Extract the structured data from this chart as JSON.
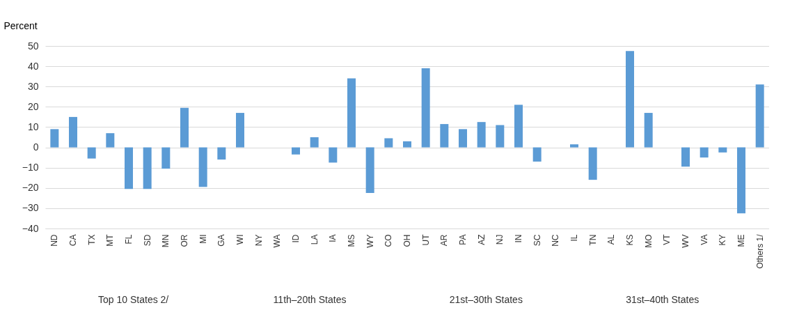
{
  "chart_data": {
    "type": "bar",
    "ylabel": "Percent",
    "categories": [
      "ND",
      "CA",
      "TX",
      "MT",
      "FL",
      "SD",
      "MN",
      "OR",
      "MI",
      "GA",
      "WI",
      "NY",
      "WA",
      "ID",
      "LA",
      "IA",
      "MS",
      "WY",
      "CO",
      "OH",
      "UT",
      "AR",
      "PA",
      "AZ",
      "NJ",
      "IN",
      "SC",
      "NC",
      "IL",
      "TN",
      "AL",
      "KS",
      "MO",
      "VT",
      "WV",
      "VA",
      "KY",
      "ME",
      "Others 1/"
    ],
    "values": [
      9,
      15,
      -5.5,
      7,
      -20.5,
      -20.5,
      -10.5,
      19.5,
      -19.5,
      -6,
      17,
      null,
      null,
      -3.5,
      5,
      -7.5,
      34,
      -22.5,
      4.5,
      3,
      39,
      11.5,
      9,
      12.5,
      11,
      21,
      -7,
      null,
      1.5,
      -16,
      null,
      47.5,
      17,
      null,
      -9.5,
      -5,
      -2.5,
      -32.5,
      31
    ],
    "color": "#5b9bd5",
    "ylim": [
      -40,
      50
    ],
    "yticks": [
      -40,
      -30,
      -20,
      -10,
      0,
      10,
      20,
      30,
      40,
      50
    ],
    "grid": "y",
    "annotations": [
      "Top 10 States 2/",
      "11th–20th States",
      "21st–30th States",
      "31st–40th States"
    ]
  }
}
